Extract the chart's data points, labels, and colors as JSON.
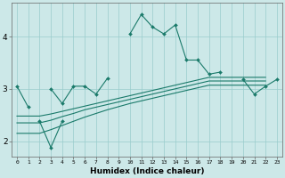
{
  "xlabel": "Humidex (Indice chaleur)",
  "x_values": [
    0,
    1,
    2,
    3,
    4,
    5,
    6,
    7,
    8,
    9,
    10,
    11,
    12,
    13,
    14,
    15,
    16,
    17,
    18,
    19,
    20,
    21,
    22,
    23
  ],
  "line1_y": [
    3.05,
    2.65,
    null,
    3.0,
    2.72,
    3.05,
    3.05,
    2.9,
    3.2,
    null,
    4.05,
    4.42,
    4.18,
    4.05,
    4.22,
    3.55,
    3.55,
    3.28,
    3.32,
    null,
    3.18,
    2.9,
    3.05,
    3.18
  ],
  "line2_y": [
    null,
    null,
    2.38,
    1.88,
    2.38,
    null,
    null,
    null,
    null,
    null,
    null,
    null,
    null,
    null,
    null,
    null,
    null,
    null,
    null,
    null,
    null,
    null,
    null,
    null
  ],
  "line3_y": [
    2.48,
    2.48,
    2.48,
    2.52,
    2.57,
    2.62,
    2.67,
    2.72,
    2.77,
    2.82,
    2.87,
    2.92,
    2.97,
    3.02,
    3.07,
    3.12,
    3.17,
    3.22,
    3.22,
    3.22,
    3.22,
    3.22,
    3.22,
    null
  ],
  "line4_y": [
    2.35,
    2.35,
    2.35,
    2.4,
    2.47,
    2.53,
    2.6,
    2.65,
    2.7,
    2.75,
    2.8,
    2.85,
    2.9,
    2.95,
    3.0,
    3.05,
    3.1,
    3.15,
    3.15,
    3.15,
    3.15,
    3.15,
    3.15,
    null
  ],
  "line5_y": [
    2.15,
    2.15,
    2.15,
    2.22,
    2.3,
    2.38,
    2.46,
    2.53,
    2.6,
    2.66,
    2.72,
    2.77,
    2.82,
    2.87,
    2.92,
    2.97,
    3.02,
    3.07,
    3.07,
    3.07,
    3.07,
    3.07,
    3.07,
    null
  ],
  "color": "#1a7a6a",
  "bg_color": "#cce8e8",
  "grid_color": "#99cccc",
  "ylim": [
    1.7,
    4.65
  ],
  "xlim": [
    -0.5,
    23.5
  ],
  "yticks": [
    2,
    3,
    4
  ],
  "xticks": [
    0,
    1,
    2,
    3,
    4,
    5,
    6,
    7,
    8,
    9,
    10,
    11,
    12,
    13,
    14,
    15,
    16,
    17,
    18,
    19,
    20,
    21,
    22,
    23
  ]
}
